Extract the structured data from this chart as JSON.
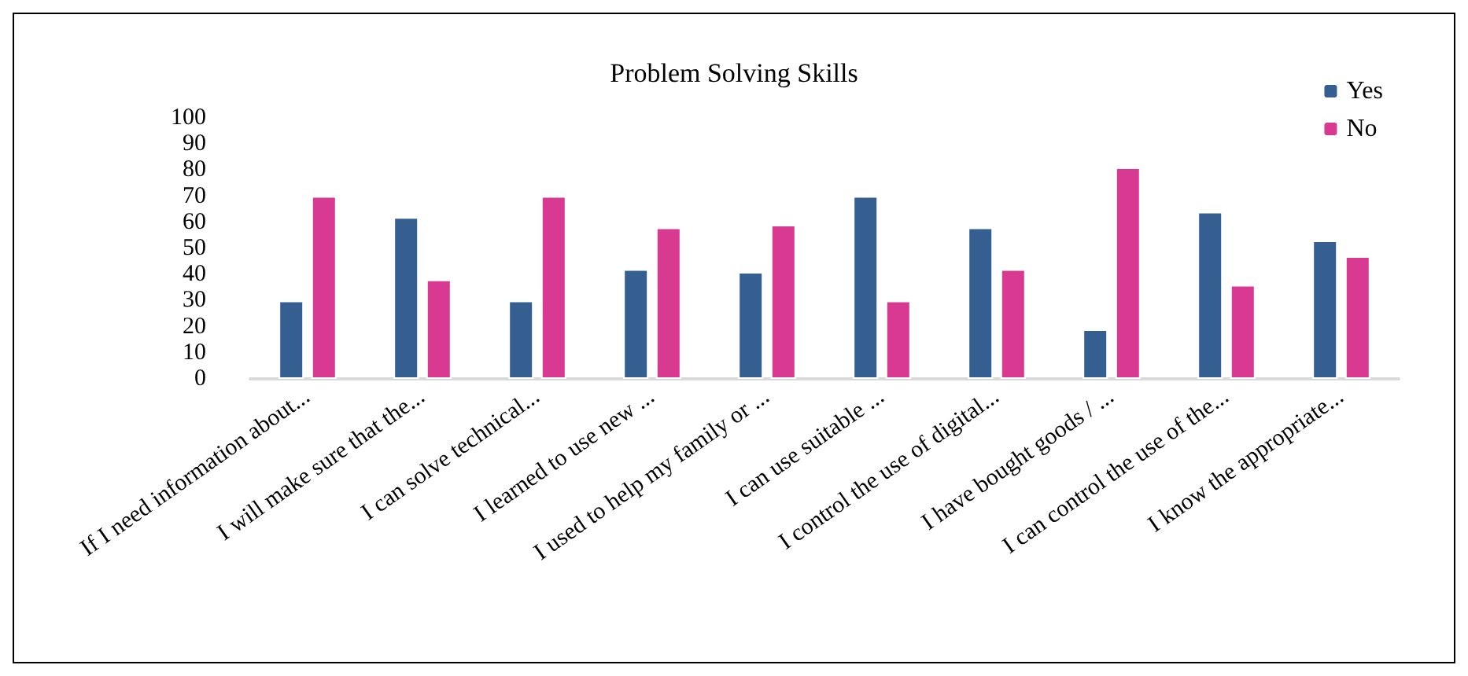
{
  "chart_data": {
    "type": "bar",
    "title": "Problem Solving Skills",
    "categories": [
      "If I need information about...",
      "I will make sure that the...",
      "I can solve technical...",
      "I learned to use new ...",
      "I used to help my family or ...",
      "I can use suitable ...",
      "I control the use of digital...",
      "I have bought goods / ...",
      "I can control the use of the...",
      "I know the appropriate..."
    ],
    "series": [
      {
        "name": "Yes",
        "color": "#355f91",
        "values": [
          30,
          62,
          30,
          42,
          41,
          70,
          58,
          19,
          64,
          53
        ]
      },
      {
        "name": "No",
        "color": "#d83a91",
        "values": [
          70,
          38,
          70,
          58,
          59,
          30,
          42,
          81,
          36,
          47
        ]
      }
    ],
    "ylim": [
      0,
      100
    ],
    "yticks": [
      0,
      10,
      20,
      30,
      40,
      50,
      60,
      70,
      80,
      90,
      100
    ],
    "grid": false,
    "legend": "top right"
  }
}
